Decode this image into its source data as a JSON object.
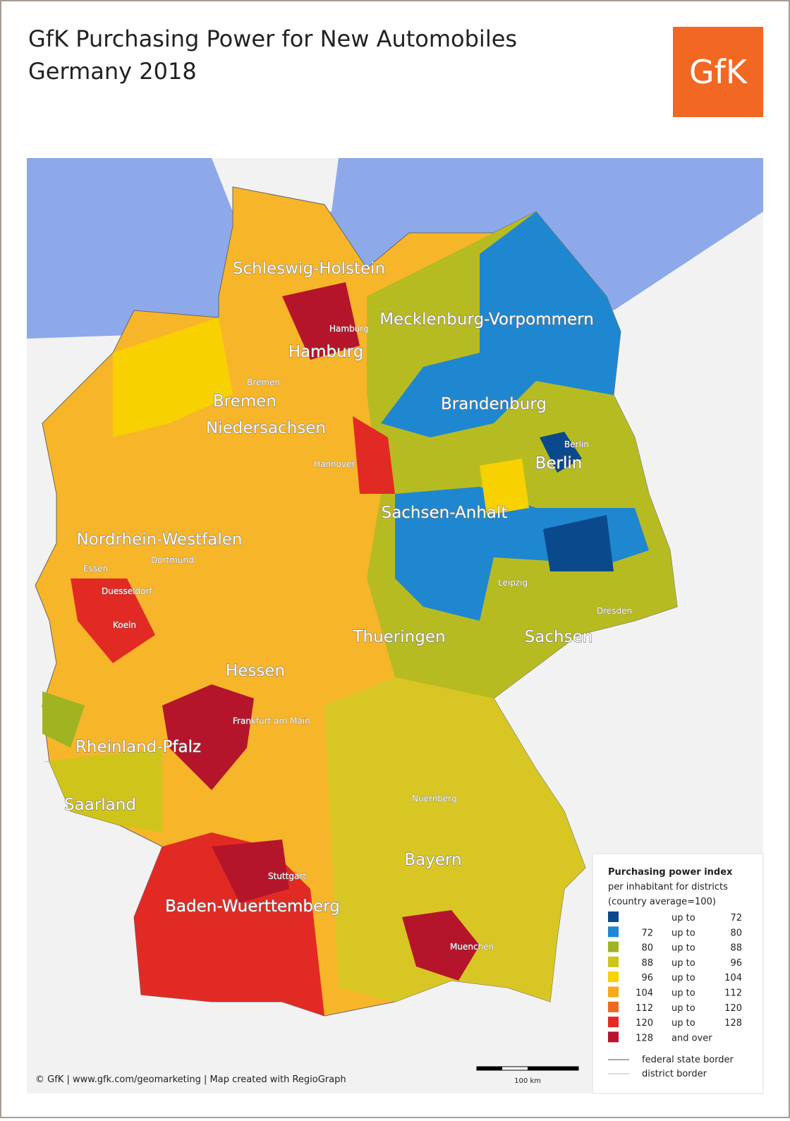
{
  "header": {
    "title_line1": "GfK Purchasing Power for New Automobiles",
    "title_line2": "Germany 2018",
    "logo": "GfK"
  },
  "states": [
    "Schleswig-Holstein",
    "Mecklenburg-Vorpommern",
    "Hamburg",
    "Bremen",
    "Niedersachsen",
    "Brandenburg",
    "Berlin",
    "Sachsen-Anhalt",
    "Nordrhein-Westfalen",
    "Thueringen",
    "Sachsen",
    "Hessen",
    "Rheinland-Pfalz",
    "Saarland",
    "Bayern",
    "Baden-Wuerttemberg"
  ],
  "cities": [
    "Hamburg",
    "Bremen",
    "Hannover",
    "Berlin",
    "Essen",
    "Dortmund",
    "Duesseldorf",
    "Koeln",
    "Leipzig",
    "Dresden",
    "Frankfurt am Main",
    "Nuernberg",
    "Stuttgart",
    "Muenchen"
  ],
  "legend": {
    "title": "Purchasing power index",
    "subtitle1": "per inhabitant for districts",
    "subtitle2": "(country average=100)",
    "rows": [
      {
        "color": "#0a4a8c",
        "connector": "up to",
        "to": 72
      },
      {
        "color": "#1f87d0",
        "from": 72,
        "connector": "up to",
        "to": 80
      },
      {
        "color": "#9fb420",
        "from": 80,
        "connector": "up to",
        "to": 88
      },
      {
        "color": "#cfc41a",
        "from": 88,
        "connector": "up to",
        "to": 96
      },
      {
        "color": "#f7d100",
        "from": 96,
        "connector": "up to",
        "to": 104
      },
      {
        "color": "#f7a81b",
        "from": 104,
        "connector": "up to",
        "to": 112
      },
      {
        "color": "#ec6a1f",
        "from": 112,
        "connector": "up to",
        "to": 120
      },
      {
        "color": "#e22a24",
        "from": 120,
        "connector": "up to",
        "to": 128
      },
      {
        "color": "#b5152b",
        "from": 128,
        "connector": "and over"
      }
    ],
    "federal_border": "federal state border",
    "district_border": "district border"
  },
  "scale": "100 km",
  "footer": "© GfK | www.gfk.com/geomarketing | Map created with RegioGraph"
}
